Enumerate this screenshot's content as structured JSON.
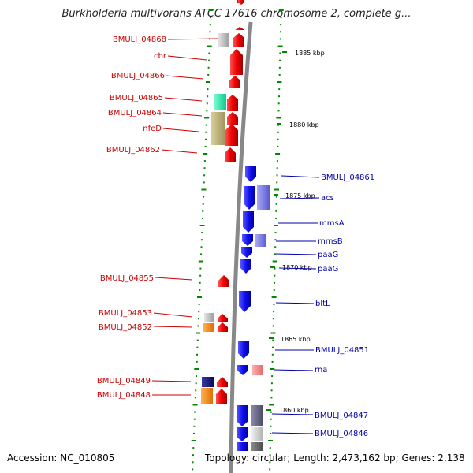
{
  "title": "Burkholderia multivorans ATCC 17616 chromosome 2, complete g...",
  "footer": {
    "accession": "Accession: NC_010805",
    "topology": "Topology: circular; Length: 2,473,162 bp; Genes: 2,138"
  },
  "colors": {
    "forward": "#ee0000",
    "reverse": "#1010ee",
    "forward_label": "#cc0000",
    "reverse_label": "#0000aa",
    "tick": "#008800",
    "backbone": "#888888"
  },
  "kbp_labels": [
    "1885 kbp",
    "1880 kbp",
    "1875 kbp",
    "1870 kbp",
    "1865 kbp",
    "1860 kbp"
  ],
  "left_labels": [
    "BMULJ_04868",
    "cbr",
    "BMULJ_04866",
    "BMULJ_04865",
    "BMULJ_04864",
    "nfeD",
    "BMULJ_04862",
    "BMULJ_04855",
    "BMULJ_04853",
    "BMULJ_04852",
    "BMULJ_04849",
    "BMULJ_04848"
  ],
  "right_labels": [
    "BMULJ_04861",
    "acs",
    "mmsA",
    "mmsB",
    "paaG",
    "paaG",
    "bltL",
    "BMULJ_04851",
    "rna",
    "BMULJ_04847",
    "BMULJ_04846"
  ]
}
